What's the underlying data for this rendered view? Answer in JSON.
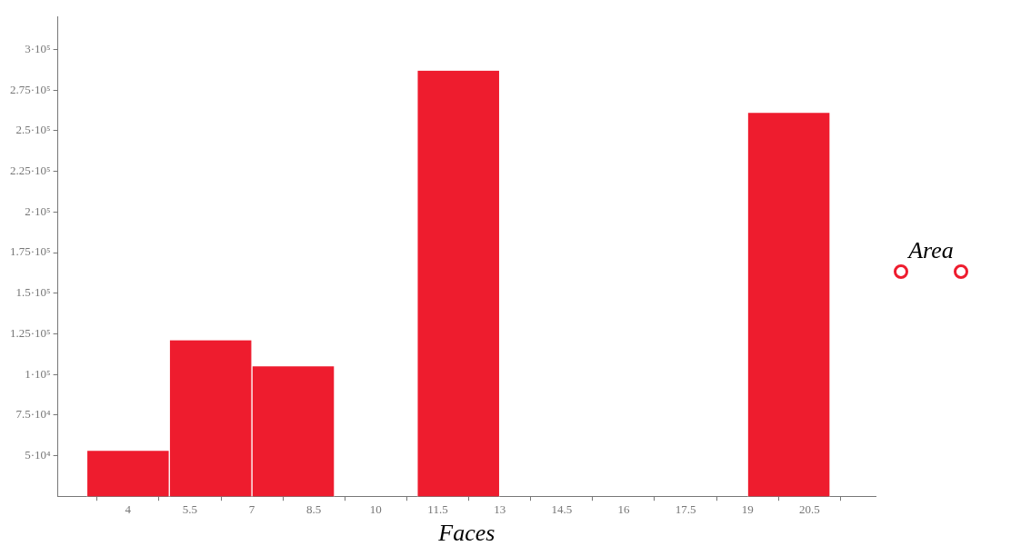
{
  "chart_data": {
    "type": "histogram",
    "xlabel": "Faces",
    "legend": "right",
    "bins": [
      3,
      5,
      7,
      9,
      11,
      13,
      15,
      17,
      19,
      21
    ],
    "series": [
      {
        "name": "Area",
        "color": "#ee1c2e",
        "values": [
          53000,
          121000,
          105000,
          null,
          287000,
          null,
          null,
          null,
          261000
        ]
      }
    ],
    "xlim": [
      2.3,
      22.1
    ],
    "xticks": [
      4,
      5.5,
      7,
      8.5,
      10,
      11.5,
      13,
      14.5,
      16,
      17.5,
      19,
      20.5
    ],
    "ylim": [
      25000,
      320000
    ],
    "yticks": [
      {
        "value": 50000,
        "label": "5·10⁴"
      },
      {
        "value": 75000,
        "label": "7.5·10⁴"
      },
      {
        "value": 100000,
        "label": "1·10⁵"
      },
      {
        "value": 125000,
        "label": "1.25·10⁵"
      },
      {
        "value": 150000,
        "label": "1.5·10⁵"
      },
      {
        "value": 175000,
        "label": "1.75·10⁵"
      },
      {
        "value": 200000,
        "label": "2·10⁵"
      },
      {
        "value": 225000,
        "label": "2.25·10⁵"
      },
      {
        "value": 250000,
        "label": "2.5·10⁵"
      },
      {
        "value": 275000,
        "label": "2.75·10⁵"
      },
      {
        "value": 300000,
        "label": "3·10⁵"
      }
    ],
    "grid": false,
    "marker": "circle"
  }
}
